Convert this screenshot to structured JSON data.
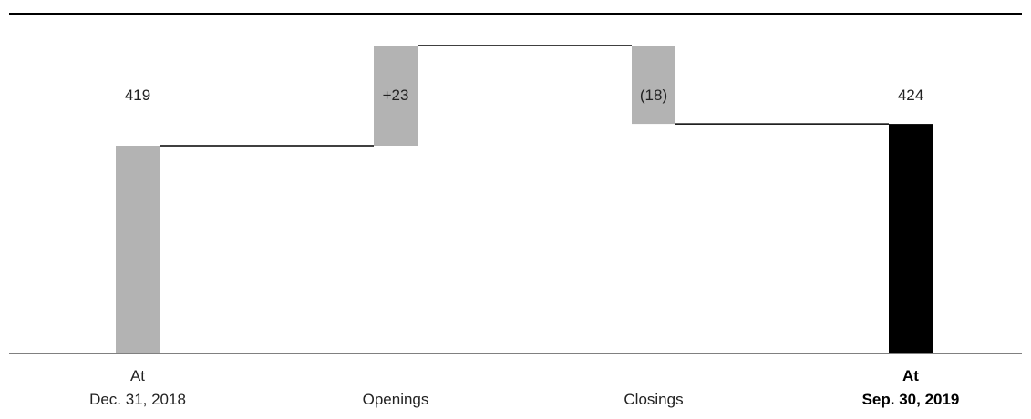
{
  "chart_data": {
    "type": "waterfall",
    "categories": [
      {
        "lines": [
          "At",
          "Dec. 31, 2018"
        ],
        "bold": false
      },
      {
        "lines": [
          "Openings"
        ],
        "bold": false
      },
      {
        "lines": [
          "Closings"
        ],
        "bold": false
      },
      {
        "lines": [
          "At",
          "Sep. 30, 2019"
        ],
        "bold": true
      }
    ],
    "steps": [
      {
        "kind": "total",
        "value": 419,
        "label": "419",
        "color": "#b3b3b3"
      },
      {
        "kind": "delta",
        "value": 23,
        "label": "+23",
        "color": "#b3b3b3"
      },
      {
        "kind": "delta",
        "value": -18,
        "label": "(18)",
        "color": "#b3b3b3"
      },
      {
        "kind": "total",
        "value": 424,
        "label": "424",
        "color": "#000000"
      }
    ],
    "title": "",
    "xlabel": "",
    "ylabel": "",
    "grid": false,
    "legend": "none",
    "colors": {
      "top_rule": "#000000",
      "baseline": "#808080",
      "connector": "#000000"
    }
  }
}
